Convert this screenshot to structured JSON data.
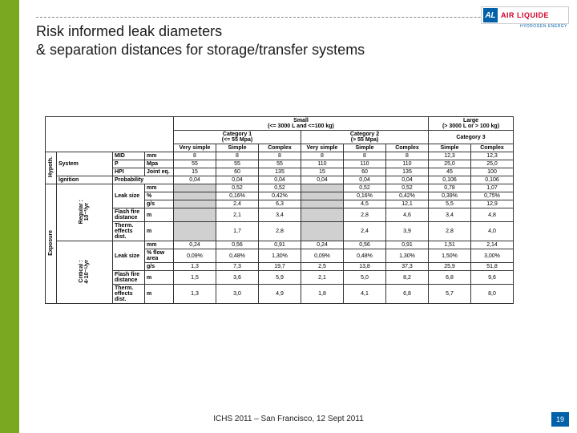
{
  "title_l1": "Risk informed leak diameters",
  "title_l2": "& separation distances for storage/transfer systems",
  "logo_text": "AIR LIQUIDE",
  "logo_sq": "AL",
  "logo_sub": "HYDROGEN ENERGY",
  "footer": "ICHS 2011 – San Francisco, 12 Sept 2011",
  "page": "19",
  "table": {
    "size_small": "Small\n(<= 3000 L and <=100 kg)",
    "size_large": "Large\n(> 3000 L or > 100 kg)",
    "cat1": "Category 1\n(<= 55 Mpa)",
    "cat2": "Category 2\n(> 55 Mpa)",
    "cat3": "Category 3",
    "vs": "Very simple",
    "s": "Simple",
    "c": "Complex",
    "groups": {
      "hypoth": "Hypoth.",
      "exposure": "Exposure",
      "regular": "Regular :\n10⁻³/yr",
      "critical": "Critical :\n4·10⁻⁵/yr"
    },
    "rows": [
      {
        "lbl": "System",
        "sub": "MID",
        "u": "mm",
        "v": [
          "8",
          "8",
          "8",
          "8",
          "8",
          "8",
          "12,3",
          "12,3"
        ]
      },
      {
        "lbl": "",
        "sub": "P",
        "u": "Mpa",
        "v": [
          "55",
          "55",
          "55",
          "110",
          "110",
          "110",
          "25,0",
          "25,0"
        ]
      },
      {
        "lbl": "",
        "sub": "HPI",
        "u": "Joint eq.",
        "v": [
          "15",
          "60",
          "135",
          "15",
          "60",
          "135",
          "45",
          "100"
        ]
      },
      {
        "lbl": "Ignition",
        "sub": "Probability",
        "u": "",
        "v": [
          "0,04",
          "0,04",
          "0,04",
          "0,04",
          "0,04",
          "0,04",
          "0,106",
          "0,106"
        ]
      },
      {
        "lbl": "Leak size",
        "sub": "",
        "u": "mm",
        "v": [
          "",
          "0,52",
          "0,52",
          "",
          "0,52",
          "0,52",
          "0,78",
          "1,07"
        ],
        "grey": [
          0,
          3
        ]
      },
      {
        "lbl": "",
        "sub": "",
        "u": "%",
        "v": [
          "",
          "0,16%",
          "0,42%",
          "",
          "0,16%",
          "0,42%",
          "0,39%",
          "0,75%"
        ],
        "grey": [
          0,
          3
        ]
      },
      {
        "lbl": "",
        "sub": "",
        "u": "g/s",
        "v": [
          "",
          "2,4",
          "6,3",
          "",
          "4,5",
          "12,1",
          "5,5",
          "12,9"
        ],
        "grey": [
          0,
          3
        ]
      },
      {
        "lbl": "Flash fire distance",
        "sub": "",
        "u": "m",
        "v": [
          "",
          "2,1",
          "3,4",
          "",
          "2,8",
          "4,6",
          "3,4",
          "4,8"
        ],
        "grey": [
          0,
          3
        ]
      },
      {
        "lbl": "Therm. effects dist.",
        "sub": "",
        "u": "m",
        "v": [
          "",
          "1,7",
          "2,8",
          "",
          "2,4",
          "3,9",
          "2,8",
          "4,0"
        ],
        "grey": [
          0,
          3
        ]
      },
      {
        "lbl": "Leak size",
        "sub": "",
        "u": "mm",
        "v": [
          "0,24",
          "0,56",
          "0,91",
          "0,24",
          "0,56",
          "0,91",
          "1,51",
          "2,14"
        ]
      },
      {
        "lbl": "",
        "sub": "",
        "u": "% flow area",
        "v": [
          "0,09%",
          "0,48%",
          "1,30%",
          "0,09%",
          "0,48%",
          "1,30%",
          "1,50%",
          "3,00%"
        ]
      },
      {
        "lbl": "",
        "sub": "",
        "u": "g/s",
        "v": [
          "1,3",
          "7,3",
          "19,7",
          "2,5",
          "13,8",
          "37,3",
          "25,9",
          "51,8"
        ]
      },
      {
        "lbl": "Flash fire distance",
        "sub": "",
        "u": "m",
        "v": [
          "1,5",
          "3,6",
          "5,9",
          "2,1",
          "5,0",
          "8,2",
          "6,8",
          "9,6"
        ]
      },
      {
        "lbl": "Therm. effects dist.",
        "sub": "",
        "u": "m",
        "v": [
          "1,3",
          "3,0",
          "4,9",
          "1,8",
          "4,1",
          "6,8",
          "5,7",
          "8,0"
        ]
      }
    ]
  },
  "colors": {
    "green": "#7aa820",
    "blue": "#0060a8",
    "red": "#d4002a"
  }
}
